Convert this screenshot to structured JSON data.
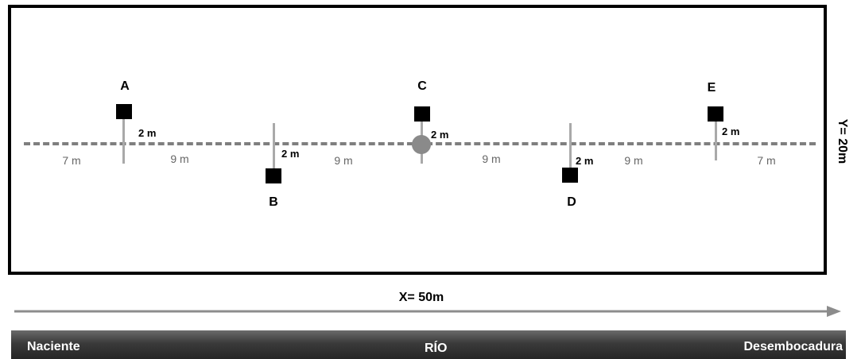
{
  "plot": {
    "markers": [
      {
        "label": "A",
        "offset": "2 m"
      },
      {
        "label": "B",
        "offset": "2 m"
      },
      {
        "label": "C",
        "offset": "2 m"
      },
      {
        "label": "D",
        "offset": "2 m"
      },
      {
        "label": "E",
        "offset": "2 m"
      }
    ],
    "spacings": [
      "7 m",
      "9 m",
      "9 m",
      "9 m",
      "9 m",
      "7 m"
    ],
    "y_dimension": "Y= 20m",
    "x_dimension": "X= 50m"
  },
  "river": {
    "label": "RÍO",
    "left_label": "Naciente",
    "right_label": "Desembocadura"
  },
  "colors": {
    "border": "#000000",
    "centerline": "#7f7f7f",
    "stake": "#a9a9a9",
    "river_band": "#3a3a3a"
  }
}
